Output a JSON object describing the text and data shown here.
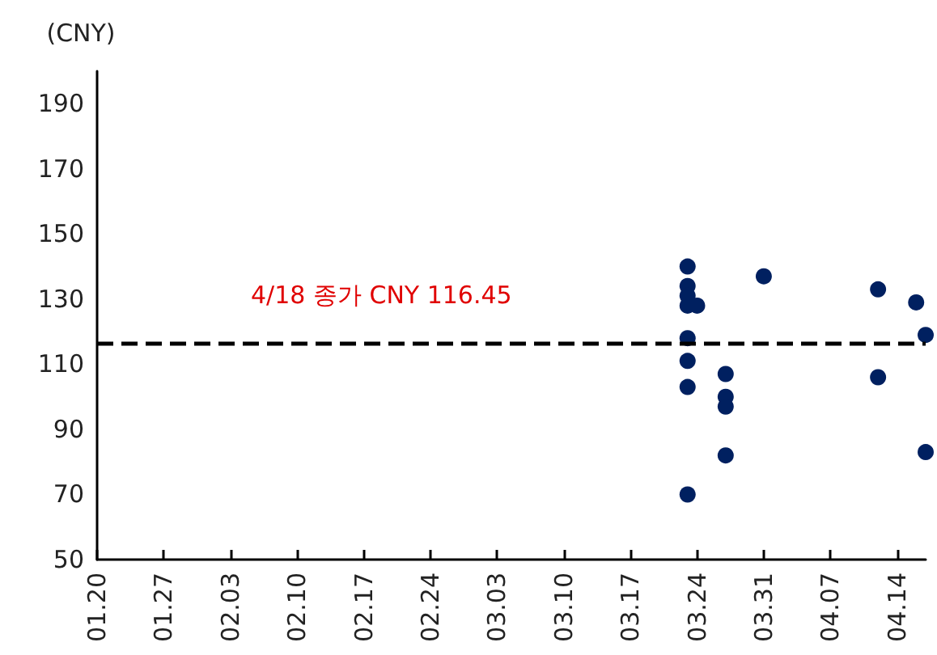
{
  "chart_data": {
    "type": "scatter",
    "ylabel": "(CNY)",
    "x": [
      "--03-23",
      "--03-23",
      "--03-23",
      "--03-23",
      "--03-23",
      "--03-23",
      "--03-23",
      "--03-23",
      "--03-24",
      "--03-27",
      "--03-27",
      "--03-27",
      "--03-27",
      "--03-31",
      "--04-12",
      "--04-12",
      "--04-16",
      "--04-17",
      "--04-17"
    ],
    "series": [
      {
        "color": "#002060",
        "values": [
          140,
          134,
          131,
          128,
          118,
          111,
          103,
          70,
          128,
          107,
          100,
          97,
          82,
          137,
          133,
          106,
          129,
          119,
          83
        ]
      }
    ],
    "xlim": [
      "--01-20",
      "--04-17"
    ],
    "xticks": [
      {
        "value": "--01-20",
        "label": "01.20"
      },
      {
        "value": "--01-27",
        "label": "01.27"
      },
      {
        "value": "--02-03",
        "label": "02.03"
      },
      {
        "value": "--02-10",
        "label": "02.10"
      },
      {
        "value": "--02-17",
        "label": "02.17"
      },
      {
        "value": "--02-24",
        "label": "02.24"
      },
      {
        "value": "--03-03",
        "label": "03.03"
      },
      {
        "value": "--03-10",
        "label": "03.10"
      },
      {
        "value": "--03-17",
        "label": "03.17"
      },
      {
        "value": "--03-24",
        "label": "03.24"
      },
      {
        "value": "--03-31",
        "label": "03.31"
      },
      {
        "value": "--04-07",
        "label": "04.07"
      },
      {
        "value": "--04-14",
        "label": "04.14"
      }
    ],
    "ylim": [
      50,
      200
    ],
    "yticks": [
      50,
      70,
      90,
      110,
      130,
      150,
      170,
      190
    ],
    "ref_lines": [
      {
        "axis": "y",
        "value": 116.45,
        "label": "4/18 종가 CNY 116.45",
        "color": "#000000",
        "line_style": "dashed"
      }
    ],
    "marker": "circle"
  }
}
